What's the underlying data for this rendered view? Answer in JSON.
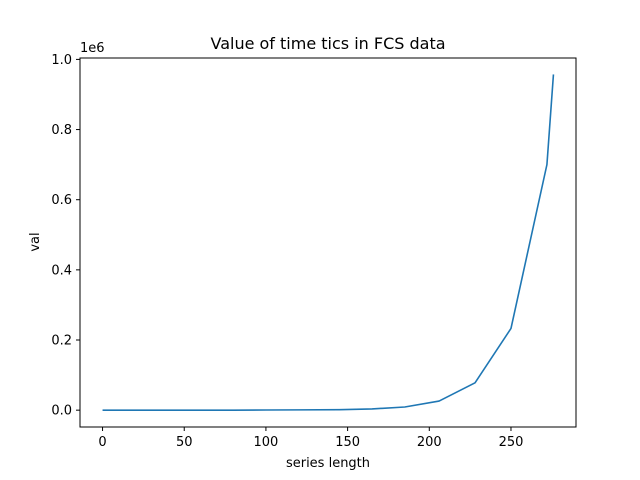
{
  "chart_data": {
    "type": "line",
    "title": "Value of time tics in FCS data",
    "xlabel": "series length",
    "ylabel": "val",
    "y_offset_label": "1e6",
    "xlim": [
      -13.8,
      289.8
    ],
    "ylim": [
      -0.048,
      1.004
    ],
    "x_ticks": [
      0,
      50,
      100,
      150,
      200,
      250
    ],
    "x_tick_labels": [
      "0",
      "50",
      "100",
      "150",
      "200",
      "250"
    ],
    "y_ticks": [
      0.0,
      0.2,
      0.4,
      0.6,
      0.8,
      1.0
    ],
    "y_tick_labels": [
      "0.0",
      "0.2",
      "0.4",
      "0.6",
      "0.8",
      "1.0"
    ],
    "grid": false,
    "series": [
      {
        "color": "#1f77b4",
        "x": [
          0,
          20,
          40,
          60,
          80,
          100,
          120,
          145,
          165,
          185,
          206,
          228,
          250,
          272,
          276
        ],
        "y": [
          0.0,
          0.0,
          0.0,
          0.0,
          0.0,
          0.0005,
          0.0008,
          0.0015,
          0.0035,
          0.009,
          0.026,
          0.078,
          0.233,
          0.7,
          0.957
        ]
      }
    ]
  }
}
